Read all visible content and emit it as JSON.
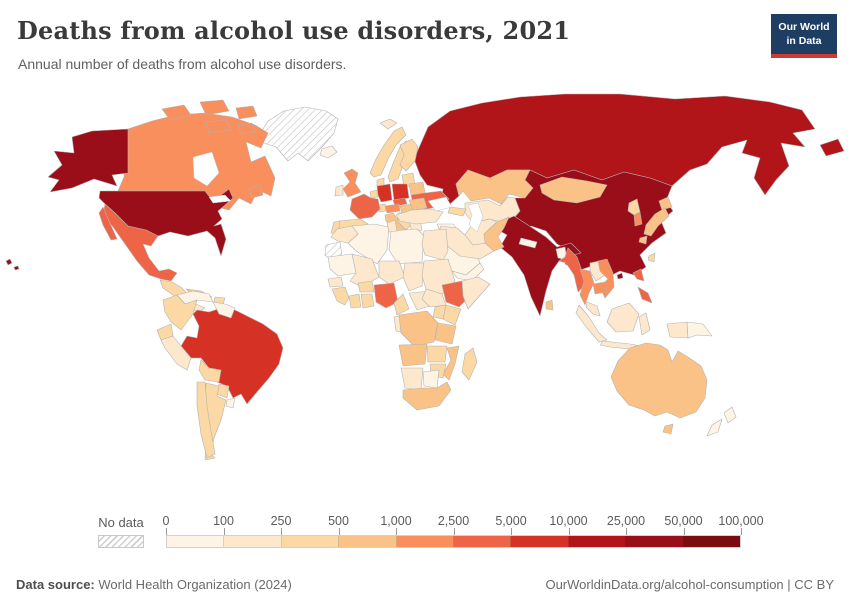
{
  "header": {
    "title": "Deaths from alcohol use disorders, 2021",
    "subtitle": "Annual number of deaths from alcohol use disorders.",
    "logo": {
      "line1": "Our World",
      "line2": "in Data",
      "bg_color": "#1d3d63",
      "accent_color": "#cc3b33"
    }
  },
  "footer": {
    "source_label": "Data source:",
    "source_value": " World Health Organization (2024)",
    "right_text": "OurWorldinData.org/alcohol-consumption | CC BY"
  },
  "chart_data": {
    "type": "choropleth_map",
    "title": "Deaths from alcohol use disorders, 2021",
    "year": 2021,
    "metric": "Annual number of deaths from alcohol use disorders",
    "projection": "world",
    "legend": {
      "no_data_label": "No data",
      "tick_labels": [
        "0",
        "100",
        "250",
        "500",
        "1,000",
        "2,500",
        "5,000",
        "10,000",
        "25,000",
        "50,000",
        "100,000"
      ],
      "bin_ranges": [
        "0–100",
        "100–250",
        "250–500",
        "500–1,000",
        "1,000–2,500",
        "2,500–5,000",
        "5,000–10,000",
        "10,000–25,000",
        "25,000–50,000",
        "50,000–100,000"
      ],
      "bin_colors": [
        "#fdf4e6",
        "#fde8cd",
        "#fbd8a4",
        "#fbc287",
        "#f98f5c",
        "#ee6446",
        "#d63125",
        "#b11419",
        "#990e18",
        "#7a0b11"
      ],
      "border_color": "#b3b3b3"
    },
    "countries": {
      "united-states": 8,
      "canada": 4,
      "greenland": "no_data",
      "mexico": 5,
      "guatemala-region": 2,
      "panama-region": 1,
      "cuba": 3,
      "hispaniola": 2,
      "venezuela": 0,
      "colombia": 2,
      "guyanas": 0,
      "brazil": 6,
      "ecuador": 2,
      "peru": 1,
      "bolivia": 2,
      "paraguay": 2,
      "argentina": 2,
      "chile": 2,
      "uruguay": 0,
      "iceland": 0,
      "svalbard": 1,
      "norway": 2,
      "sweden": 2,
      "finland": 2,
      "denmark": 2,
      "baltics": 2,
      "belarus": 3,
      "ukraine": 5,
      "poland": 6,
      "germany": 6,
      "czechia": 5,
      "austria": 4,
      "switzerland": 2,
      "benelux": 2,
      "france": 5,
      "united-kingdom": 4,
      "ireland": 1,
      "spain": 2,
      "portugal": 2,
      "italy": 3,
      "hungary": 3,
      "romania": 3,
      "balkans": 2,
      "bulgaria": 2,
      "greece": 1,
      "russia": 7,
      "kazakhstan": 3,
      "central-asia": 1,
      "china": 8,
      "mongolia": 3,
      "north-korea": 2,
      "south-korea": 4,
      "japan": 3,
      "taiwan": 2,
      "turkey": 1,
      "georgia-azerbaijan": 2,
      "levant-iraq": 0,
      "saudi-arabia": 0,
      "yemen-oman": 0,
      "iran": 1,
      "afghanistan": 1,
      "pakistan": 3,
      "india": 8,
      "nepal": 0,
      "bangladesh": 0,
      "sri-lanka": 3,
      "myanmar": 5,
      "thailand": 4,
      "laos": 1,
      "cambodia": 4,
      "vietnam": 4,
      "malaysia": 1,
      "indonesia": 1,
      "philippines": 5,
      "papua-new-guinea": 0,
      "morocco": 1,
      "western-sahara": "no_data",
      "algeria": 0,
      "tunisia": 1,
      "libya": 0,
      "egypt": 1,
      "mauritania": 0,
      "mali": 1,
      "niger": 1,
      "chad": 1,
      "sudan": 1,
      "senegal": 1,
      "guinea": 2,
      "ivory-coast": 2,
      "ghana": 2,
      "burkina-faso": 2,
      "nigeria": 5,
      "cameroon": 2,
      "gabon-congo": 1,
      "central-african-republic": 1,
      "south-sudan": 1,
      "ethiopia": 5,
      "somalia": 1,
      "kenya": 2,
      "uganda": 2,
      "democratic-republic-of-congo": 3,
      "tanzania": 3,
      "angola": 3,
      "zambia": 2,
      "mozambique": 3,
      "zimbabwe": 2,
      "namibia": 1,
      "botswana": 0,
      "south-africa": 3,
      "madagascar": 2,
      "australia": 3,
      "new-zealand": 0
    }
  }
}
